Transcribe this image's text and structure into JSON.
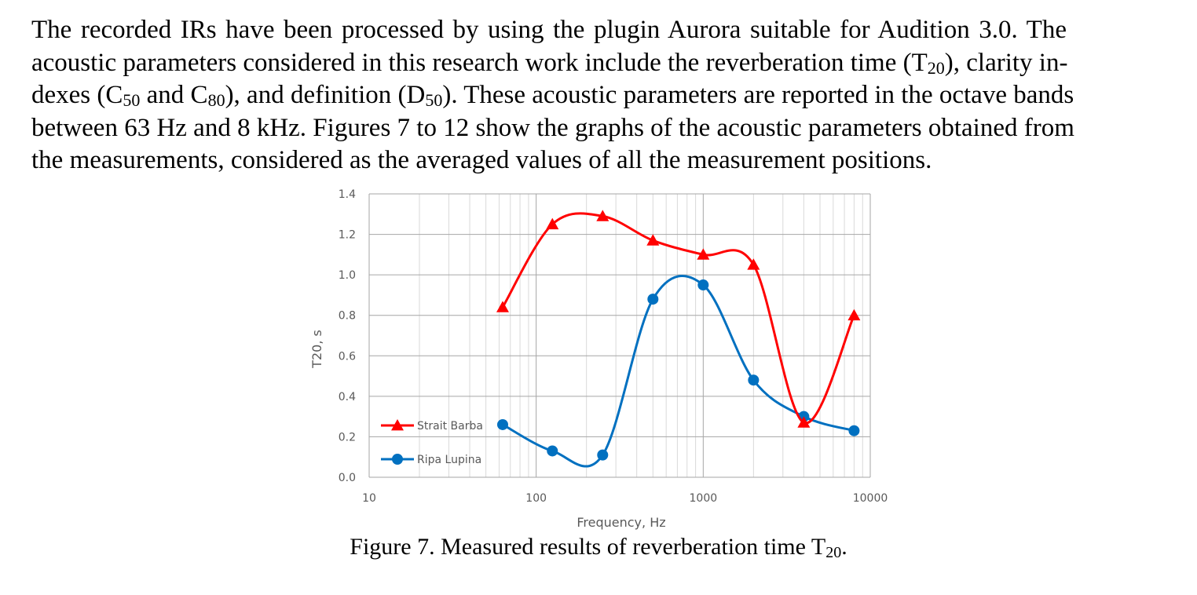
{
  "paragraph": {
    "lines": [
      [
        "The recorded IRs have been processed by using the plugin Aurora suitable for Audition 3.0. The"
      ],
      [
        "acoustic parameters considered in this research work include the reverberation time (T",
        "20",
        "), clarity in-"
      ],
      [
        "dexes (C",
        "50",
        " and C",
        "80",
        "), and definition (D",
        "50",
        "). These acoustic parameters are reported in the octave bands"
      ],
      [
        "between 63 Hz and 8 kHz. Figures 7 to 12 show the graphs of the acoustic parameters obtained from"
      ],
      [
        "the measurements, considered as the averaged values of all the measurement positions."
      ]
    ]
  },
  "chart_data": {
    "type": "line",
    "xscale": "log",
    "xlim": [
      10,
      10000
    ],
    "ylim": [
      0,
      1.4
    ],
    "xticks": [
      10,
      100,
      1000,
      10000
    ],
    "xtick_labels": [
      "10",
      "100",
      "1000",
      "10000"
    ],
    "yticks": [
      0,
      0.2,
      0.4,
      0.6,
      0.8,
      1.0,
      1.2,
      1.4
    ],
    "ytick_labels": [
      "0.0",
      "0.2",
      "0.4",
      "0.6",
      "0.8",
      "1.0",
      "1.2",
      "1.4"
    ],
    "xlabel": "Frequency, Hz",
    "ylabel": "T20, s",
    "grid": true,
    "legend_position": "bottom-left",
    "x": [
      63,
      125,
      250,
      500,
      1000,
      2000,
      4000,
      8000
    ],
    "series": [
      {
        "name": "Strait Barba",
        "color": "#FF0000",
        "marker": "triangle",
        "values": [
          0.84,
          1.25,
          1.29,
          1.17,
          1.1,
          1.05,
          0.27,
          0.8
        ]
      },
      {
        "name": "Ripa Lupina",
        "color": "#0070C0",
        "marker": "circle",
        "values": [
          0.26,
          0.13,
          0.11,
          0.88,
          0.95,
          0.48,
          0.3,
          0.23
        ]
      }
    ]
  },
  "caption": {
    "text": "Figure 7. Measured results of reverberation time T",
    "sub": "20",
    "end": "."
  }
}
